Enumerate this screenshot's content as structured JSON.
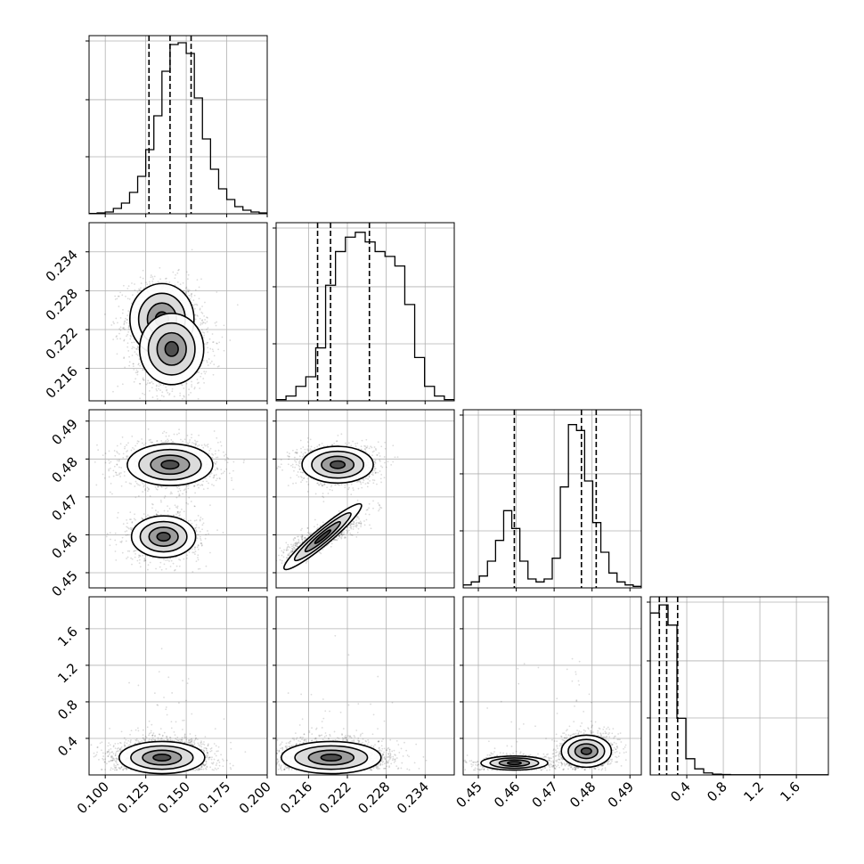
{
  "chart_data": {
    "type": "corner",
    "grid": true,
    "variables": [
      {
        "range": [
          0.09,
          0.2
        ],
        "ticks": [
          0.1,
          0.125,
          0.15,
          0.175,
          0.2
        ],
        "tick_labels": [
          "0.100",
          "0.125",
          "0.150",
          "0.175",
          "0.200"
        ],
        "quantiles": [
          0.127,
          0.14,
          0.153
        ]
      },
      {
        "range": [
          0.211,
          0.2385
        ],
        "ticks": [
          0.216,
          0.222,
          0.228,
          0.234
        ],
        "tick_labels": [
          "0.216",
          "0.222",
          "0.228",
          "0.234"
        ],
        "quantiles": [
          0.2174,
          0.2194,
          0.2254
        ]
      },
      {
        "range": [
          0.446,
          0.493
        ],
        "ticks": [
          0.45,
          0.46,
          0.47,
          0.48,
          0.49
        ],
        "tick_labels": [
          "0.45",
          "0.46",
          "0.47",
          "0.48",
          "0.49"
        ],
        "quantiles": [
          0.4595,
          0.4772,
          0.4811
        ]
      },
      {
        "range": [
          0.0,
          1.95
        ],
        "ticks": [
          0.4,
          0.8,
          1.2,
          1.6
        ],
        "tick_labels": [
          "0.4",
          "0.8",
          "1.2",
          "1.6"
        ],
        "quantiles": [
          0.1,
          0.18,
          0.3
        ]
      }
    ],
    "histograms": [
      [
        0.2,
        0.5,
        1,
        3,
        6,
        12,
        21,
        36,
        55,
        80,
        95,
        96,
        90,
        65,
        42,
        25,
        14,
        8,
        4,
        2,
        1,
        0.5
      ],
      [
        0.5,
        2,
        6,
        10,
        22,
        48,
        62,
        68,
        70,
        66,
        62,
        60,
        56,
        40,
        18,
        6,
        2,
        0.5
      ],
      [
        1,
        2,
        4,
        9,
        16,
        26,
        20,
        9,
        3,
        2,
        3,
        10,
        34,
        55,
        53,
        36,
        22,
        12,
        5,
        2,
        1,
        0.5
      ],
      [
        40,
        42,
        37,
        14,
        4,
        1.5,
        0.5,
        0.2,
        0.1,
        0.05,
        0.05,
        0.05,
        0.05,
        0.05,
        0.05,
        0.05,
        0.05,
        0.05,
        0.05,
        0.05
      ]
    ],
    "hist_ymax": [
      100,
      74,
      60,
      44
    ],
    "clusters": {
      "1_0": [
        {
          "cx": 0.135,
          "cy": 0.2236,
          "sx": 0.009,
          "sy": 0.0025,
          "w": 0.5
        },
        {
          "cx": 0.141,
          "cy": 0.219,
          "sx": 0.009,
          "sy": 0.0025,
          "w": 0.5
        }
      ],
      "2_0": [
        {
          "cx": 0.14,
          "cy": 0.4785,
          "sx": 0.012,
          "sy": 0.0025,
          "w": 0.55
        },
        {
          "cx": 0.136,
          "cy": 0.4595,
          "sx": 0.009,
          "sy": 0.0025,
          "w": 0.45
        }
      ],
      "2_1": [
        {
          "cx": 0.2205,
          "cy": 0.4785,
          "sx": 0.0025,
          "sy": 0.0022,
          "w": 0.55
        },
        {
          "cx": 0.2182,
          "cy": 0.4595,
          "sx": 0.0022,
          "sy": 0.0022,
          "w": 0.45,
          "rho": 0.85
        }
      ],
      "3_0": [
        {
          "cx": 0.135,
          "cy": 0.19,
          "sx": 0.012,
          "sy": 0.08,
          "w": 1.0
        }
      ],
      "3_1": [
        {
          "cx": 0.2195,
          "cy": 0.19,
          "sx": 0.0035,
          "sy": 0.08,
          "w": 1.0
        }
      ],
      "3_2": [
        {
          "cx": 0.4785,
          "cy": 0.26,
          "sx": 0.003,
          "sy": 0.08,
          "w": 0.55
        },
        {
          "cx": 0.4595,
          "cy": 0.13,
          "sx": 0.004,
          "sy": 0.035,
          "w": 0.45
        }
      ]
    }
  }
}
